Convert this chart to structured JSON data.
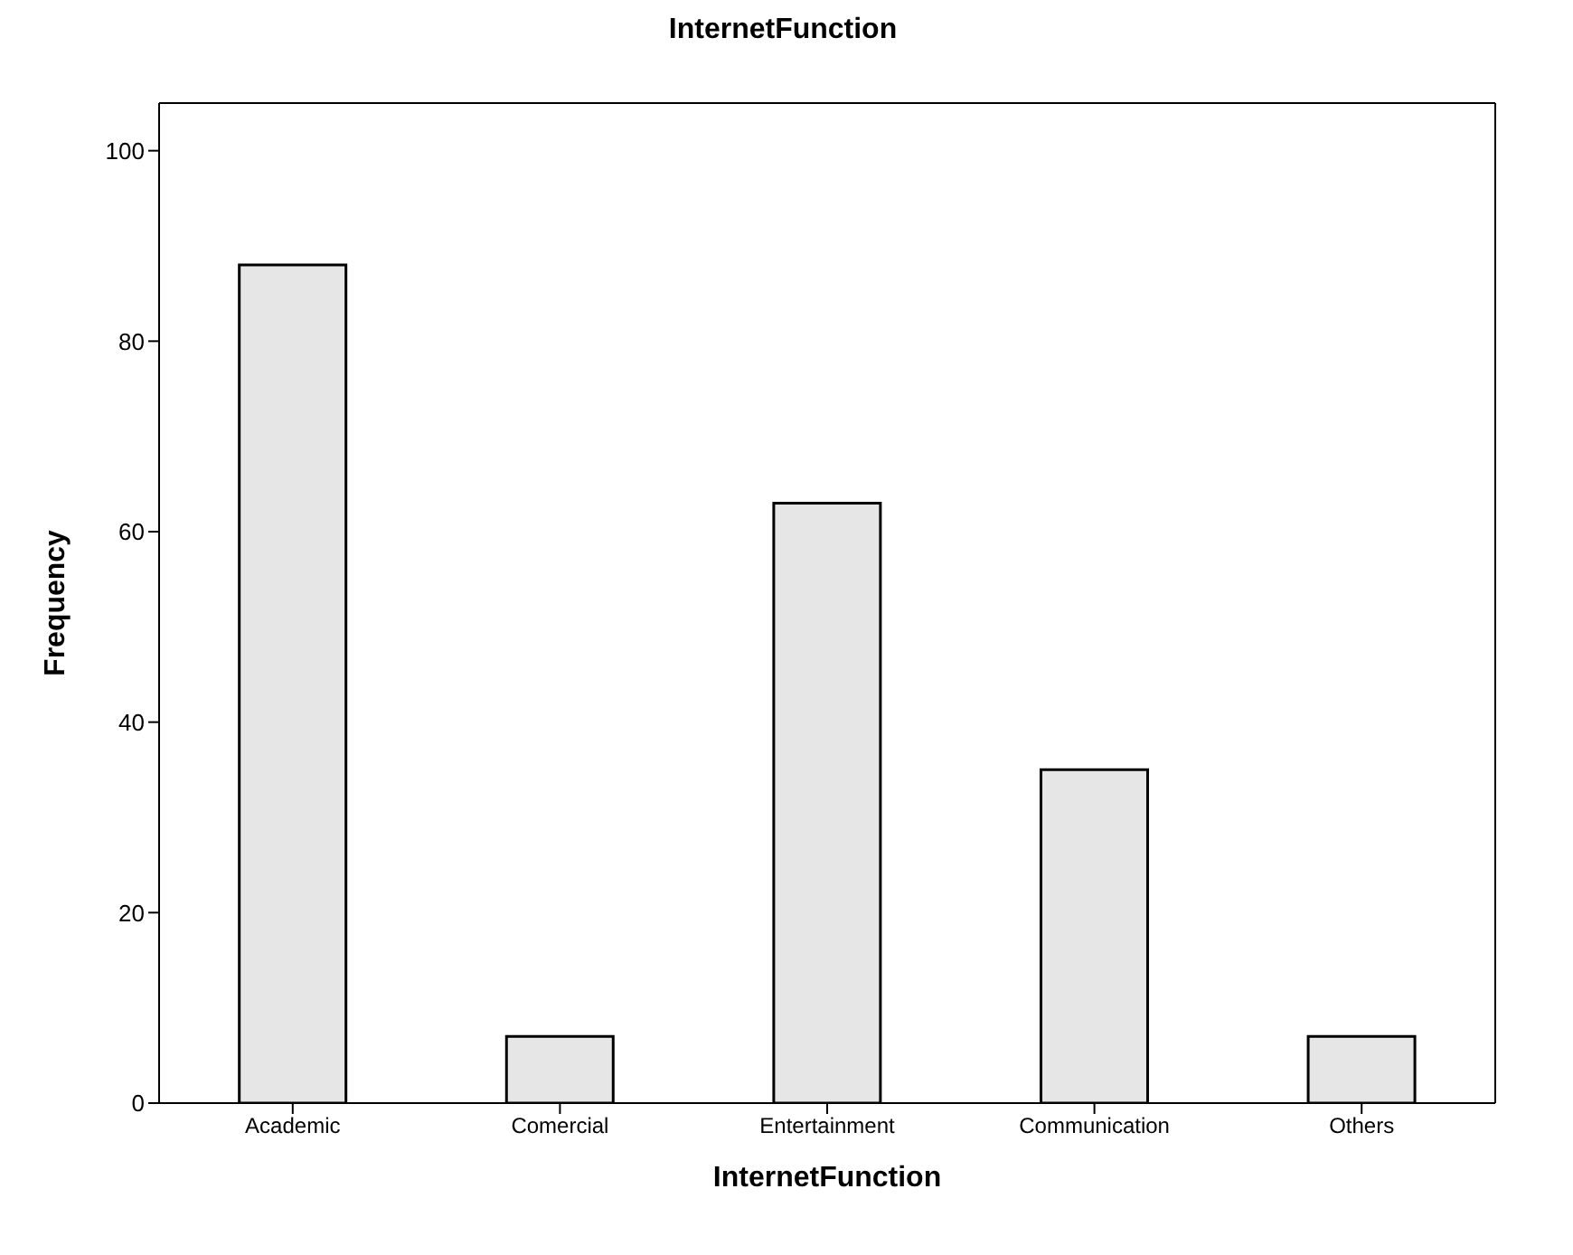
{
  "chart_data": {
    "type": "bar",
    "title": "InternetFunction",
    "xlabel": "InternetFunction",
    "ylabel": "Frequency",
    "categories": [
      "Academic",
      "Comercial",
      "Entertainment",
      "Communication",
      "Others"
    ],
    "values": [
      88,
      7,
      63,
      35,
      7
    ],
    "color": "#e6e6e6",
    "ylim": [
      0,
      105
    ],
    "yticks": [
      0,
      20,
      40,
      60,
      80,
      100
    ],
    "grid": false,
    "legend": false
  }
}
